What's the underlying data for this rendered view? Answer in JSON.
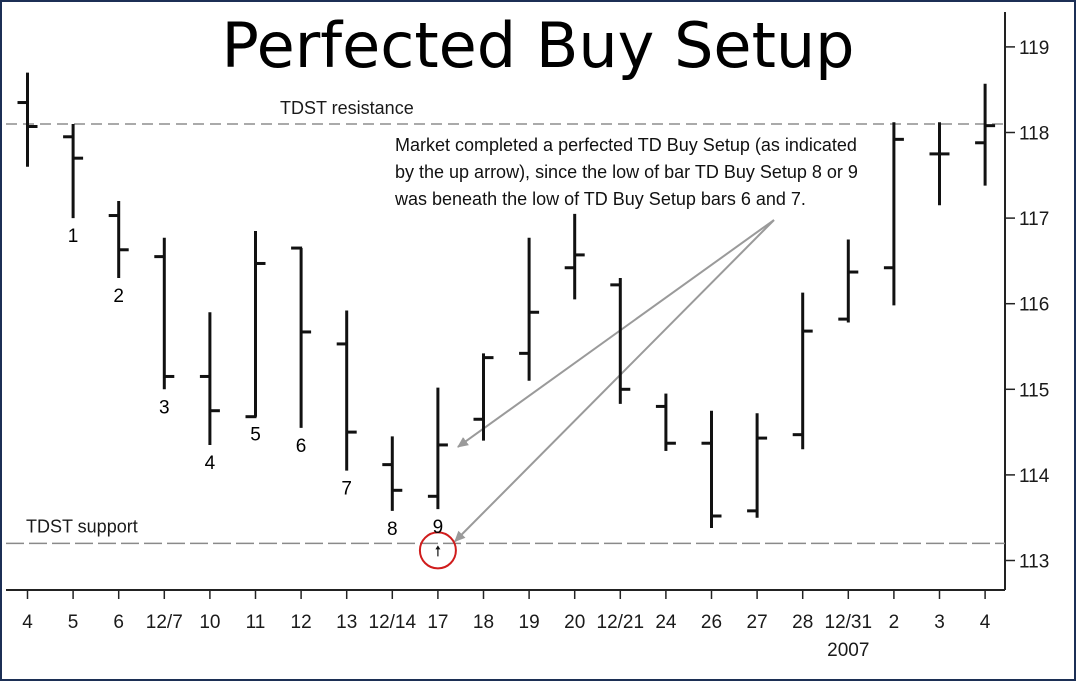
{
  "chart_data": {
    "type": "ohlc",
    "title": "Perfected Buy Setup",
    "ylim": [
      112.7,
      119.3
    ],
    "yticks": [
      113,
      114,
      115,
      116,
      117,
      118,
      119
    ],
    "x_labels": [
      "4",
      "5",
      "6",
      "12/7",
      "10",
      "11",
      "12",
      "13",
      "12/14",
      "17",
      "18",
      "19",
      "20",
      "12/21",
      "24",
      "26",
      "27",
      "28",
      "12/31",
      "2",
      "3",
      "4"
    ],
    "year_label": "2007",
    "bars": [
      {
        "high": 118.7,
        "low": 117.6,
        "open": 118.35,
        "close": 118.07
      },
      {
        "high": 118.1,
        "low": 117.0,
        "open": 117.95,
        "close": 117.7
      },
      {
        "high": 117.2,
        "low": 116.3,
        "open": 117.03,
        "close": 116.63
      },
      {
        "high": 116.77,
        "low": 115.0,
        "open": 116.55,
        "close": 115.15
      },
      {
        "high": 115.9,
        "low": 114.35,
        "open": 115.15,
        "close": 114.75
      },
      {
        "high": 116.85,
        "low": 114.68,
        "open": 114.68,
        "close": 116.47
      },
      {
        "high": 116.65,
        "low": 114.55,
        "open": 116.65,
        "close": 115.67
      },
      {
        "high": 115.92,
        "low": 114.05,
        "open": 115.53,
        "close": 114.5
      },
      {
        "high": 114.45,
        "low": 113.58,
        "open": 114.12,
        "close": 113.82
      },
      {
        "high": 115.02,
        "low": 113.6,
        "open": 113.75,
        "close": 114.35
      },
      {
        "high": 115.42,
        "low": 114.4,
        "open": 114.65,
        "close": 115.37
      },
      {
        "high": 116.77,
        "low": 115.1,
        "open": 115.42,
        "close": 115.9
      },
      {
        "high": 117.05,
        "low": 116.05,
        "open": 116.42,
        "close": 116.57
      },
      {
        "high": 116.3,
        "low": 114.83,
        "open": 116.22,
        "close": 115.0
      },
      {
        "high": 114.95,
        "low": 114.28,
        "open": 114.8,
        "close": 114.37
      },
      {
        "high": 114.75,
        "low": 113.38,
        "open": 114.37,
        "close": 113.52
      },
      {
        "high": 114.72,
        "low": 113.5,
        "open": 113.58,
        "close": 114.43
      },
      {
        "high": 116.13,
        "low": 114.3,
        "open": 114.47,
        "close": 115.68
      },
      {
        "high": 116.75,
        "low": 115.78,
        "open": 115.82,
        "close": 116.37
      },
      {
        "high": 118.12,
        "low": 115.98,
        "open": 116.42,
        "close": 117.92
      },
      {
        "high": 118.12,
        "low": 117.15,
        "open": 117.75,
        "close": 117.75
      },
      {
        "high": 118.57,
        "low": 117.38,
        "open": 117.88,
        "close": 118.08
      }
    ],
    "setup_counts": [
      {
        "bar": 1,
        "label": "1"
      },
      {
        "bar": 2,
        "label": "2"
      },
      {
        "bar": 3,
        "label": "3"
      },
      {
        "bar": 4,
        "label": "4"
      },
      {
        "bar": 5,
        "label": "5"
      },
      {
        "bar": 6,
        "label": "6"
      },
      {
        "bar": 7,
        "label": "7"
      },
      {
        "bar": 8,
        "label": "8"
      },
      {
        "bar": 9,
        "label": "9"
      }
    ],
    "resistance": {
      "label": "TDST resistance",
      "value": 118.1
    },
    "support": {
      "label": "TDST support",
      "value": 113.2
    },
    "annotation": [
      "Market completed a perfected TD Buy Setup (as indicated",
      "by the up arrow), since the low of bar TD Buy Setup 8 or 9",
      "was beneath the low of TD Buy Setup bars 6 and 7."
    ],
    "up_arrow_bar": 9
  }
}
